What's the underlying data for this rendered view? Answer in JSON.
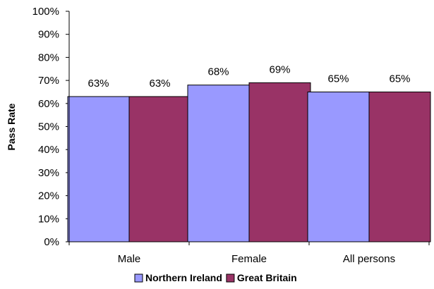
{
  "chart_data": {
    "type": "bar",
    "title": "",
    "xlabel": "",
    "ylabel": "Pass Rate",
    "ylim": [
      0,
      100
    ],
    "ytick_values": [
      0,
      10,
      20,
      30,
      40,
      50,
      60,
      70,
      80,
      90,
      100
    ],
    "ytick_labels": [
      "0%",
      "10%",
      "20%",
      "30%",
      "40%",
      "50%",
      "60%",
      "70%",
      "80%",
      "90%",
      "100%"
    ],
    "categories": [
      "Male",
      "Female",
      "All persons"
    ],
    "series": [
      {
        "name": "Northern Ireland",
        "values": [
          63,
          68,
          65
        ],
        "labels": [
          "63%",
          "68%",
          "65%"
        ],
        "color": "#9999ff"
      },
      {
        "name": "Great Britain",
        "values": [
          63,
          69,
          65
        ],
        "labels": [
          "63%",
          "69%",
          "65%"
        ],
        "color": "#993366"
      }
    ],
    "grid": false,
    "legend_position": "bottom"
  }
}
